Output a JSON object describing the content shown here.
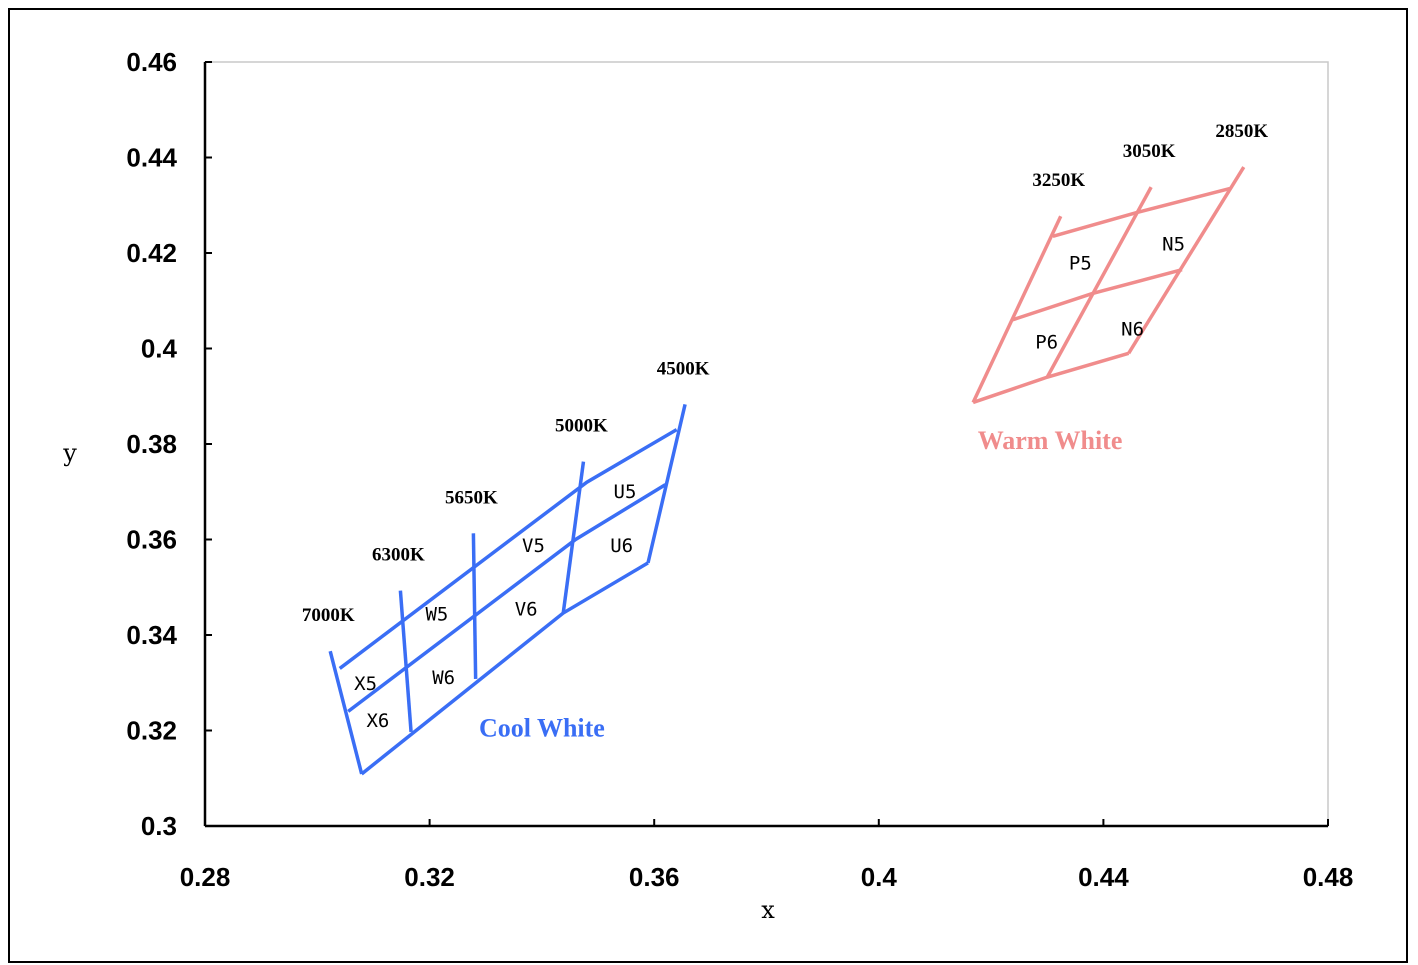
{
  "chart_data": {
    "type": "diagram",
    "xlabel": "x",
    "ylabel": "y",
    "xlim": [
      0.28,
      0.48
    ],
    "ylim": [
      0.3,
      0.46
    ],
    "x_ticks": [
      "0.28",
      "0.32",
      "0.36",
      "0.4",
      "0.44",
      "0.48"
    ],
    "y_ticks": [
      "0.3",
      "0.32",
      "0.34",
      "0.36",
      "0.38",
      "0.4",
      "0.42",
      "0.44",
      "0.46"
    ],
    "colors": {
      "cool": "#3a6ef5",
      "warm": "#f08c8c"
    },
    "groups": [
      {
        "name": "Cool White",
        "color_key": "cool",
        "cct_lines": [
          {
            "label": "7000K",
            "points": [
              [
                0.3023,
                0.3366
              ],
              [
                0.3079,
                0.3109
              ]
            ]
          },
          {
            "label": "6300K",
            "points": [
              [
                0.3148,
                0.3493
              ],
              [
                0.3167,
                0.3197
              ]
            ]
          },
          {
            "label": "5650K",
            "points": [
              [
                0.3278,
                0.3613
              ],
              [
                0.3282,
                0.3308
              ]
            ]
          },
          {
            "label": "5000K",
            "points": [
              [
                0.3474,
                0.3763
              ],
              [
                0.3438,
                0.3446
              ]
            ]
          },
          {
            "label": "4500K",
            "points": [
              [
                0.3655,
                0.3883
              ],
              [
                0.3589,
                0.3551
              ]
            ]
          }
        ],
        "row_lines": [
          [
            [
              0.304,
              0.333
            ],
            [
              0.348,
              0.372
            ],
            [
              0.364,
              0.383
            ]
          ],
          [
            [
              0.3055,
              0.324
            ],
            [
              0.346,
              0.36
            ],
            [
              0.362,
              0.3715
            ]
          ],
          [
            [
              0.3079,
              0.3109
            ],
            [
              0.3438,
              0.3446
            ],
            [
              0.3589,
              0.3551
            ]
          ]
        ],
        "cells": [
          {
            "label": "X5",
            "x": 0.3086,
            "y": 0.3299
          },
          {
            "label": "X6",
            "x": 0.3108,
            "y": 0.3222
          },
          {
            "label": "W5",
            "x": 0.3213,
            "y": 0.3445
          },
          {
            "label": "W6",
            "x": 0.3225,
            "y": 0.3312
          },
          {
            "label": "V5",
            "x": 0.3385,
            "y": 0.3588
          },
          {
            "label": "V6",
            "x": 0.3372,
            "y": 0.3455
          },
          {
            "label": "U5",
            "x": 0.3548,
            "y": 0.3702
          },
          {
            "label": "U6",
            "x": 0.3542,
            "y": 0.3588
          }
        ],
        "name_pos": [
          0.34,
          0.3187
        ]
      },
      {
        "name": "Warm White",
        "color_key": "warm",
        "cct_lines": [
          {
            "label": "3250K",
            "points": [
              [
                0.4324,
                0.4277
              ],
              [
                0.4168,
                0.3887
              ]
            ]
          },
          {
            "label": "3050K",
            "points": [
              [
                0.4485,
                0.4338
              ],
              [
                0.43,
                0.394
              ]
            ]
          },
          {
            "label": "2850K",
            "points": [
              [
                0.465,
                0.438
              ],
              [
                0.4445,
                0.399
              ]
            ]
          }
        ],
        "row_lines": [
          [
            [
              0.431,
              0.4235
            ],
            [
              0.446,
              0.4285
            ],
            [
              0.4625,
              0.4335
            ]
          ],
          [
            [
              0.4238,
              0.406
            ],
            [
              0.438,
              0.4115
            ],
            [
              0.454,
              0.4165
            ]
          ],
          [
            [
              0.4168,
              0.3887
            ],
            [
              0.43,
              0.394
            ],
            [
              0.4445,
              0.399
            ]
          ]
        ],
        "cells": [
          {
            "label": "P5",
            "x": 0.4359,
            "y": 0.418
          },
          {
            "label": "P6",
            "x": 0.4299,
            "y": 0.4015
          },
          {
            "label": "N5",
            "x": 0.4525,
            "y": 0.422
          },
          {
            "label": "N6",
            "x": 0.4452,
            "y": 0.4042
          }
        ],
        "name_pos": [
          0.4305,
          0.379
        ]
      }
    ]
  }
}
